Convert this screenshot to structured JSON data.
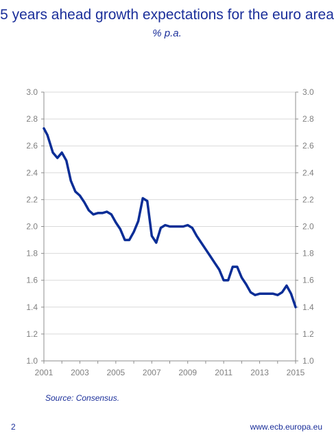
{
  "header": {
    "title": "5 years ahead growth expectations for the euro area",
    "subtitle": "% p.a."
  },
  "footer": {
    "source": "Source: Consensus.",
    "page_number": "2",
    "url": "www.ecb.europa.eu"
  },
  "colors": {
    "title": "#1b2f9a",
    "series": "#0a2d96",
    "grid": "#d9d9d9",
    "axis": "#8c8c8c",
    "tick_text": "#7f7f7f"
  },
  "chart_data": {
    "type": "line",
    "title": "5 years ahead growth expectations for the euro area",
    "subtitle": "% p.a.",
    "xlim": [
      2001,
      2015
    ],
    "ylim": [
      1.0,
      3.0
    ],
    "x_ticks": [
      "2001",
      "2003",
      "2005",
      "2007",
      "2009",
      "2011",
      "2013",
      "2015"
    ],
    "y_ticks": [
      "1.0",
      "1.2",
      "1.4",
      "1.6",
      "1.8",
      "2.0",
      "2.2",
      "2.4",
      "2.6",
      "2.8",
      "3.0"
    ],
    "y_ticks_right": [
      "1.0",
      "1.2",
      "1.4",
      "1.6",
      "1.8",
      "2.0",
      "2.2",
      "2.4",
      "2.6",
      "2.8",
      "3.0"
    ],
    "grid": true,
    "legend": "none",
    "series": [
      {
        "x": [
          2001.0,
          2001.2,
          2001.5,
          2001.75,
          2002.0,
          2002.25,
          2002.5,
          2002.75,
          2003.0,
          2003.25,
          2003.5,
          2003.75,
          2004.0,
          2004.25,
          2004.5,
          2004.75,
          2005.0,
          2005.25,
          2005.5,
          2005.75,
          2006.0,
          2006.25,
          2006.5,
          2006.75,
          2007.0,
          2007.25,
          2007.5,
          2007.75,
          2008.0,
          2008.25,
          2008.5,
          2008.75,
          2009.0,
          2009.25,
          2009.5,
          2009.75,
          2010.0,
          2010.25,
          2010.5,
          2010.75,
          2011.0,
          2011.25,
          2011.5,
          2011.75,
          2012.0,
          2012.25,
          2012.5,
          2012.75,
          2013.0,
          2013.25,
          2013.5,
          2013.75,
          2014.0,
          2014.25,
          2014.5,
          2014.75,
          2015.0
        ],
        "values": [
          2.73,
          2.68,
          2.55,
          2.51,
          2.55,
          2.49,
          2.34,
          2.26,
          2.23,
          2.18,
          2.12,
          2.09,
          2.1,
          2.1,
          2.11,
          2.09,
          2.03,
          1.98,
          1.9,
          1.9,
          1.96,
          2.04,
          2.21,
          2.19,
          1.93,
          1.88,
          1.99,
          2.01,
          2.0,
          2.0,
          2.0,
          2.0,
          2.01,
          1.99,
          1.93,
          1.88,
          1.83,
          1.78,
          1.73,
          1.68,
          1.6,
          1.6,
          1.7,
          1.7,
          1.62,
          1.57,
          1.51,
          1.49,
          1.5,
          1.5,
          1.5,
          1.5,
          1.49,
          1.51,
          1.56,
          1.5,
          1.4
        ]
      }
    ]
  }
}
